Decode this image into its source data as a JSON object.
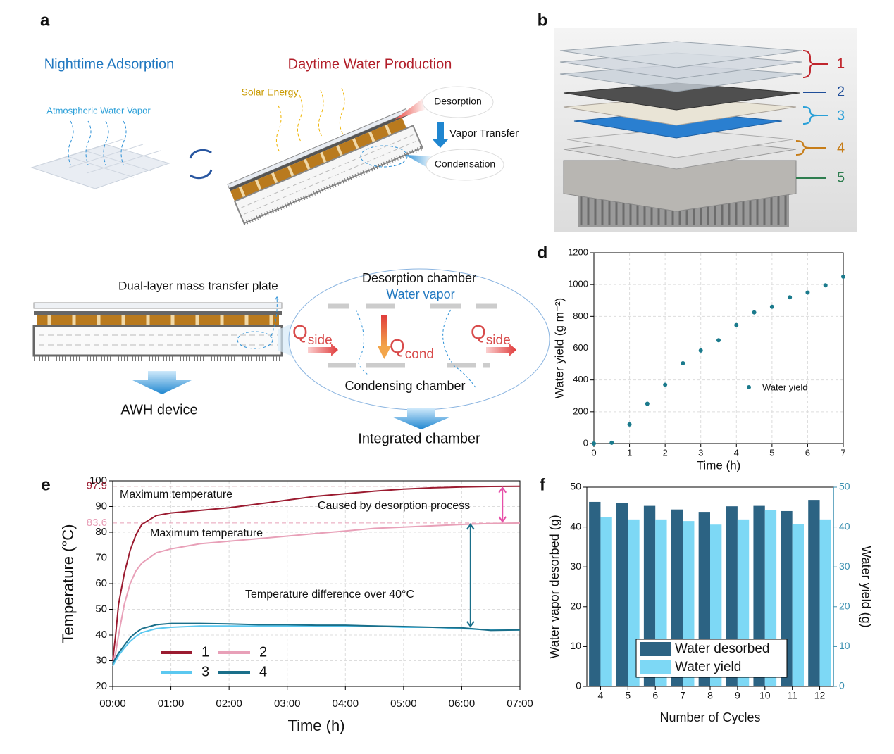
{
  "panel_a": {
    "label": "a",
    "left_title": "Nighttime Adsorption",
    "right_title": "Daytime Water Production",
    "vapor": "Atmospheric Water Vapor",
    "solar": "Solar Energy",
    "desorption": "Desorption",
    "vapor_transfer": "Vapor Transfer",
    "condensation": "Condensation"
  },
  "panel_b": {
    "label": "b",
    "callouts": [
      "1",
      "2",
      "3",
      "4",
      "5"
    ]
  },
  "panel_c": {
    "plate": "Dual-layer mass transfer plate",
    "desorption_chamber": "Desorption chamber",
    "water_vapor": "Water vapor",
    "q": "Q",
    "side": "side",
    "cond": "cond",
    "condensing_chamber": "Condensing chamber",
    "device": "AWH device",
    "chamber": "Integrated chamber"
  },
  "chart_data": [
    {
      "type": "scatter",
      "panel": "d",
      "xlabel": "Time (h)",
      "ylabel": "Water yield (g m⁻²)",
      "x": [
        0,
        0.5,
        1,
        1.5,
        2,
        2.5,
        3,
        3.5,
        4,
        4.5,
        5,
        5.5,
        6,
        6.5,
        7
      ],
      "series": [
        {
          "name": "Water yield",
          "color": "#1a7a8c",
          "values": [
            0,
            5,
            120,
            250,
            370,
            505,
            585,
            650,
            745,
            825,
            860,
            920,
            950,
            995,
            1050
          ]
        }
      ],
      "xlim": [
        0,
        7
      ],
      "xticks": [
        0,
        1,
        2,
        3,
        4,
        5,
        6,
        7
      ],
      "ylim": [
        0,
        1200
      ],
      "yticks": [
        0,
        200,
        400,
        600,
        800,
        1000,
        1200
      ],
      "grid": true
    },
    {
      "type": "line",
      "panel": "e",
      "xlabel": "Time (h)",
      "ylabel": "Temperature (°C)",
      "x": [
        0,
        0.05,
        0.1,
        0.2,
        0.3,
        0.4,
        0.5,
        0.75,
        1,
        1.5,
        2,
        2.5,
        3,
        3.5,
        4,
        4.5,
        5,
        5.5,
        6,
        6.5,
        7
      ],
      "series": [
        {
          "name": "1",
          "color": "#9b1b30",
          "values": [
            30,
            40,
            52,
            64,
            73,
            79,
            83,
            86.5,
            87.5,
            88.5,
            89.5,
            91,
            92.5,
            94,
            95,
            96,
            96.8,
            97.3,
            97.6,
            97.8,
            97.9
          ]
        },
        {
          "name": "2",
          "color": "#e8a0b8",
          "values": [
            29,
            33,
            40,
            52,
            60,
            65,
            68,
            72,
            73.5,
            75.5,
            76.5,
            77.5,
            78.5,
            79.5,
            80.5,
            81.5,
            82,
            82.5,
            83,
            83.4,
            83.6
          ]
        },
        {
          "name": "3",
          "color": "#5bc8f0",
          "values": [
            28,
            30,
            32,
            35,
            37.5,
            39.5,
            41,
            42.5,
            43,
            43.5,
            43.5,
            43.5,
            43.5,
            43.5,
            43.5,
            43.5,
            43,
            43,
            42.5,
            42,
            42
          ]
        },
        {
          "name": "4",
          "color": "#1a6f8a",
          "values": [
            29,
            31,
            33,
            36,
            39,
            41,
            42.5,
            44,
            44.5,
            44.5,
            44.3,
            44,
            44,
            43.8,
            43.8,
            43.5,
            43.3,
            43,
            42.8,
            41.8,
            42
          ]
        }
      ],
      "ref_lines": [
        97.9,
        83.6
      ],
      "ref_line_colors": [
        "#9b1b30",
        "#e8a0b8"
      ],
      "annotations": [
        "Maximum temperature",
        "Maximum temperature",
        "Caused by desorption process",
        "Temperature difference over 40°C"
      ],
      "xlim": [
        0,
        7
      ],
      "xticks": [
        {
          "value": 0,
          "label": "00:00"
        },
        {
          "value": 1,
          "label": "01:00"
        },
        {
          "value": 2,
          "label": "02:00"
        },
        {
          "value": 3,
          "label": "03:00"
        },
        {
          "value": 4,
          "label": "04:00"
        },
        {
          "value": 5,
          "label": "05:00"
        },
        {
          "value": 6,
          "label": "06:00"
        },
        {
          "value": 7,
          "label": "07:00"
        }
      ],
      "ylim": [
        20,
        100
      ],
      "yticks": [
        20,
        30,
        40,
        50,
        60,
        70,
        80,
        90,
        100
      ],
      "grid": true
    },
    {
      "type": "bar",
      "panel": "f",
      "xlabel": "Number of Cycles",
      "ylabel": "Water vapor desorbed (g)",
      "y2label": "Water yield (g)",
      "categories": [
        "4",
        "5",
        "6",
        "7",
        "8",
        "9",
        "10",
        "11",
        "12"
      ],
      "series": [
        {
          "name": "Water desorbed",
          "color": "#2c6383",
          "values": [
            46.3,
            46,
            45.3,
            44.4,
            43.8,
            45.2,
            45.3,
            44,
            46.8
          ]
        },
        {
          "name": "Water yield",
          "color": "#7dd8f5",
          "axis": "y2",
          "values": [
            42.5,
            41.9,
            41.9,
            41.5,
            40.6,
            41.9,
            44.2,
            40.7,
            41.9
          ]
        }
      ],
      "ylim": [
        0,
        50
      ],
      "yticks": [
        0,
        10,
        20,
        30,
        40,
        50
      ],
      "y2lim": [
        0,
        50
      ],
      "y2ticks": [
        0,
        10,
        20,
        30,
        40,
        50
      ],
      "grid": false
    }
  ]
}
